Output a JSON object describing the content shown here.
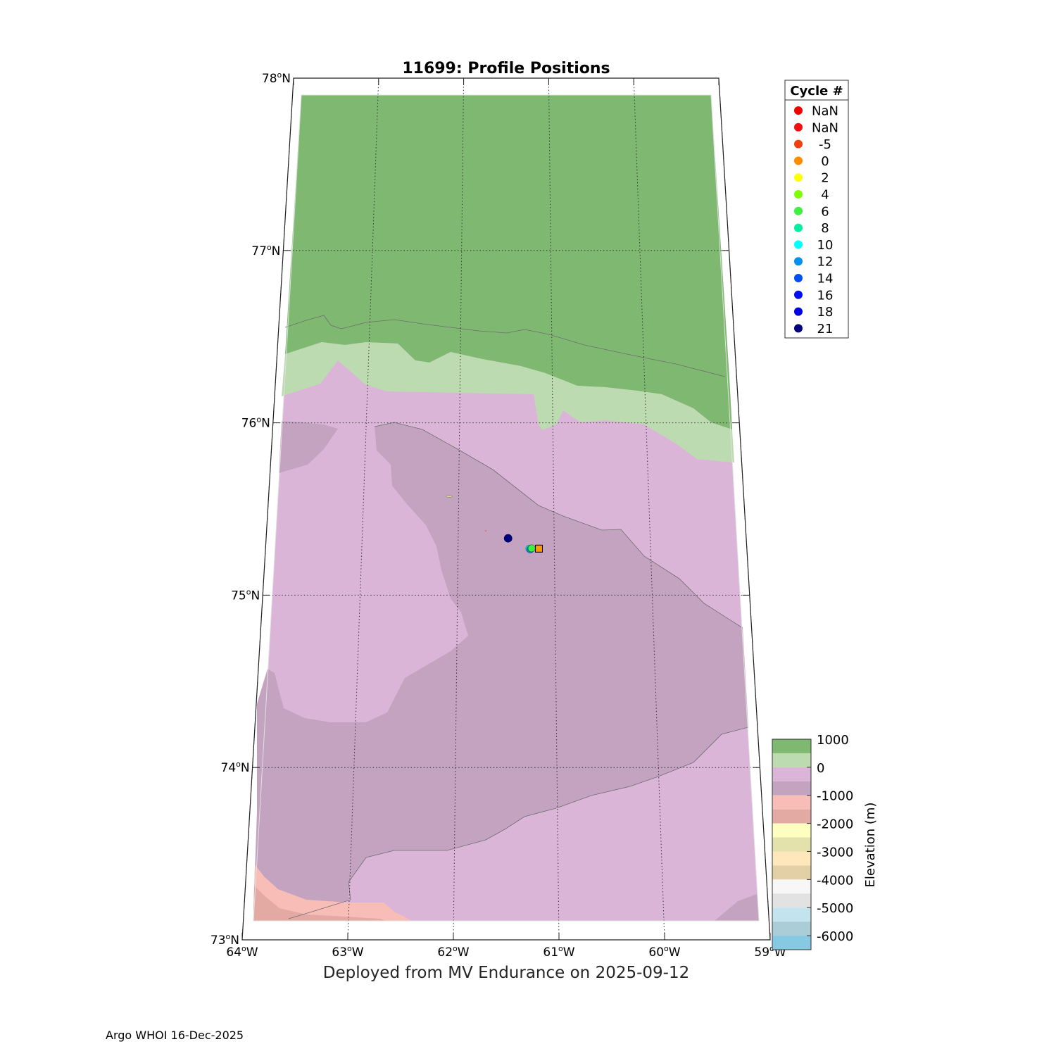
{
  "title": "11699: Profile Positions",
  "subtitle": "Deployed from MV Endurance on 2025-09-12",
  "footer": "Argo WHOI 16-Dec-2025",
  "map": {
    "lat_range": [
      73,
      78
    ],
    "lon_range": [
      -64,
      -59
    ],
    "lat_ticks": [
      {
        "value": 78,
        "num": "78",
        "hemi": "N"
      },
      {
        "value": 77,
        "num": "77",
        "hemi": "N"
      },
      {
        "value": 76,
        "num": "76",
        "hemi": "N"
      },
      {
        "value": 75,
        "num": "75",
        "hemi": "N"
      },
      {
        "value": 74,
        "num": "74",
        "hemi": "N"
      },
      {
        "value": 73,
        "num": "73",
        "hemi": "N"
      }
    ],
    "lon_ticks": [
      {
        "value": -64,
        "num": "64",
        "hemi": "W"
      },
      {
        "value": -63,
        "num": "63",
        "hemi": "W"
      },
      {
        "value": -62,
        "num": "62",
        "hemi": "W"
      },
      {
        "value": -61,
        "num": "61",
        "hemi": "W"
      },
      {
        "value": -60,
        "num": "60",
        "hemi": "W"
      },
      {
        "value": -59,
        "num": "59",
        "hemi": "W"
      }
    ],
    "colors": {
      "land_high": "#7fb971",
      "land_low": "#bddbb0",
      "shelf": "#dbb5d8",
      "slope": "#c4a3c1",
      "deep1": "#f7bdb6",
      "deep2": "#e2aaa3"
    },
    "profiles": [
      {
        "cycle": 21,
        "lon": -61.48,
        "lat": 75.33,
        "color": "#000080"
      },
      {
        "cycle": 10,
        "lon": -61.26,
        "lat": 75.27,
        "color": "#00e5ee"
      },
      {
        "cycle": 12,
        "lon": -61.25,
        "lat": 75.265,
        "color": "#0090f0"
      },
      {
        "cycle": 8,
        "lon": -61.24,
        "lat": 75.27,
        "color": "#00f0a0"
      },
      {
        "cycle": 6,
        "lon": -61.235,
        "lat": 75.272,
        "color": "#40f040"
      }
    ],
    "deployment": {
      "lon": -61.16,
      "lat": 75.27,
      "color": "#ff9900"
    }
  },
  "legend": {
    "title": "Cycle #",
    "items": [
      {
        "label": "NaN",
        "color": "#ee0000"
      },
      {
        "label": "NaN",
        "color": "#f01010"
      },
      {
        "label": "-5",
        "color": "#f04010"
      },
      {
        "label": "0",
        "color": "#ff8c00"
      },
      {
        "label": "2",
        "color": "#ffff00"
      },
      {
        "label": "4",
        "color": "#80ff00"
      },
      {
        "label": "6",
        "color": "#40f040"
      },
      {
        "label": "8",
        "color": "#00f0a0"
      },
      {
        "label": "10",
        "color": "#00ffff"
      },
      {
        "label": "12",
        "color": "#0090f0"
      },
      {
        "label": "14",
        "color": "#0050f0"
      },
      {
        "label": "16",
        "color": "#0010f0"
      },
      {
        "label": "18",
        "color": "#0000e0"
      },
      {
        "label": "21",
        "color": "#000080"
      }
    ]
  },
  "colorbar": {
    "label": "Elevation (m)",
    "range": [
      -6500,
      1000
    ],
    "ticks": [
      {
        "value": 1000,
        "label": "1000"
      },
      {
        "value": 0,
        "label": "0"
      },
      {
        "value": -1000,
        "label": "-1000"
      },
      {
        "value": -2000,
        "label": "-2000"
      },
      {
        "value": -3000,
        "label": "-3000"
      },
      {
        "value": -4000,
        "label": "-4000"
      },
      {
        "value": -5000,
        "label": "-5000"
      },
      {
        "value": -6000,
        "label": "-6000"
      }
    ],
    "bands": [
      {
        "from": 500,
        "to": 1000,
        "color": "#7fb971"
      },
      {
        "from": 0,
        "to": 500,
        "color": "#bddbb0"
      },
      {
        "from": -500,
        "to": 0,
        "color": "#dbb5d8"
      },
      {
        "from": -1000,
        "to": -500,
        "color": "#c4a3c1"
      },
      {
        "from": -1500,
        "to": -1000,
        "color": "#f7bdb6"
      },
      {
        "from": -2000,
        "to": -1500,
        "color": "#e2aaa3"
      },
      {
        "from": -2500,
        "to": -2000,
        "color": "#fefec0"
      },
      {
        "from": -3000,
        "to": -2500,
        "color": "#e3e2ac"
      },
      {
        "from": -3500,
        "to": -3000,
        "color": "#fde7bb"
      },
      {
        "from": -4000,
        "to": -3500,
        "color": "#e3d0a6"
      },
      {
        "from": -4500,
        "to": -4000,
        "color": "#f7f7f7"
      },
      {
        "from": -5000,
        "to": -4500,
        "color": "#e2e2e2"
      },
      {
        "from": -5500,
        "to": -5000,
        "color": "#c3e4ee"
      },
      {
        "from": -6000,
        "to": -5500,
        "color": "#abcdd7"
      },
      {
        "from": -6500,
        "to": -6000,
        "color": "#86c9e3"
      }
    ]
  }
}
